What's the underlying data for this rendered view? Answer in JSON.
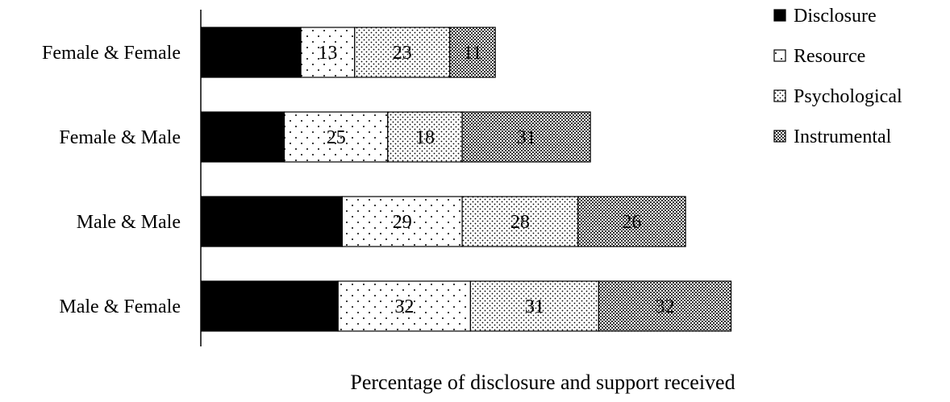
{
  "chart_data": {
    "type": "bar",
    "orientation": "horizontal",
    "stacked": true,
    "title": "",
    "xlabel": "Percentage of disclosure and support received",
    "ylabel": "",
    "categories": [
      "Female & Female",
      "Female & Male",
      "Male & Male",
      "Male & Female"
    ],
    "series": [
      {
        "name": "Disclosure",
        "values": [
          24,
          20,
          34,
          33
        ],
        "show_labels": false,
        "pattern": "solid-black"
      },
      {
        "name": "Resource",
        "values": [
          13,
          25,
          29,
          32
        ],
        "show_labels": true,
        "pattern": "sparse-dots"
      },
      {
        "name": "Psychological",
        "values": [
          23,
          18,
          28,
          31
        ],
        "show_labels": true,
        "pattern": "dense-dots"
      },
      {
        "name": "Instrumental",
        "values": [
          11,
          31,
          26,
          32
        ],
        "show_labels": true,
        "pattern": "crosshatch"
      }
    ],
    "xlim": [
      0,
      155
    ],
    "grid": false,
    "legend_position": "top-right",
    "x_axis_line": false,
    "y_axis_line": true
  }
}
